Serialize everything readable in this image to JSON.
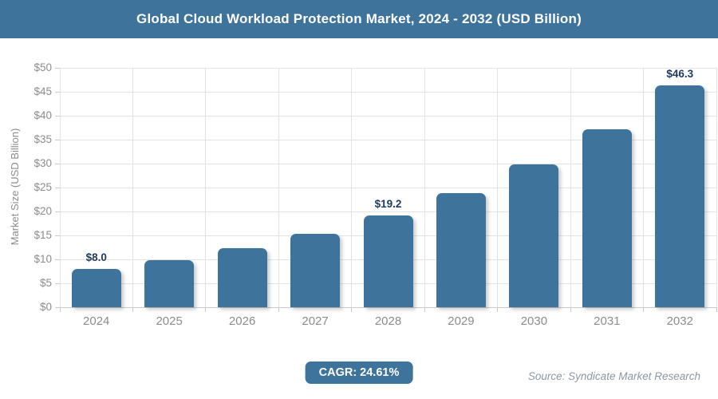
{
  "header": {
    "title": "Global Cloud Workload Protection Market, 2024 - 2032 (USD Billion)"
  },
  "chart_data": {
    "type": "bar",
    "title": "Global Cloud Workload Protection Market, 2024 - 2032 (USD Billion)",
    "categories": [
      "2024",
      "2025",
      "2026",
      "2027",
      "2028",
      "2029",
      "2030",
      "2031",
      "2032"
    ],
    "values": [
      8.0,
      9.9,
      12.3,
      15.4,
      19.2,
      23.9,
      29.8,
      37.1,
      46.3
    ],
    "bar_labels": [
      "$8.0",
      null,
      null,
      null,
      "$19.2",
      null,
      null,
      null,
      "$46.3"
    ],
    "xlabel": "",
    "ylabel": "Market Size (USD Billion)",
    "ylim": [
      0,
      50
    ],
    "ytick_step": 5,
    "yticklabels": [
      "$0",
      "$5",
      "$10",
      "$15",
      "$20",
      "$25",
      "$30",
      "$35",
      "$40",
      "$45",
      "$50"
    ],
    "grid": true,
    "legend": false
  },
  "footer": {
    "cagr_label": "CAGR: 24.61%",
    "source": "Source: Syndicate Market Research"
  },
  "colors": {
    "header_bg": "#3e749c",
    "bar_fill": "#3e749c",
    "bar_label_text": "#1e3a5f",
    "axis_text": "#8c8c8c",
    "gridline": "#e3e3e3",
    "axis_line": "#c9c9c9",
    "cagr_badge_bg": "#3e749c",
    "cagr_badge_text": "#ffffff",
    "source_text": "#8b98a2"
  }
}
